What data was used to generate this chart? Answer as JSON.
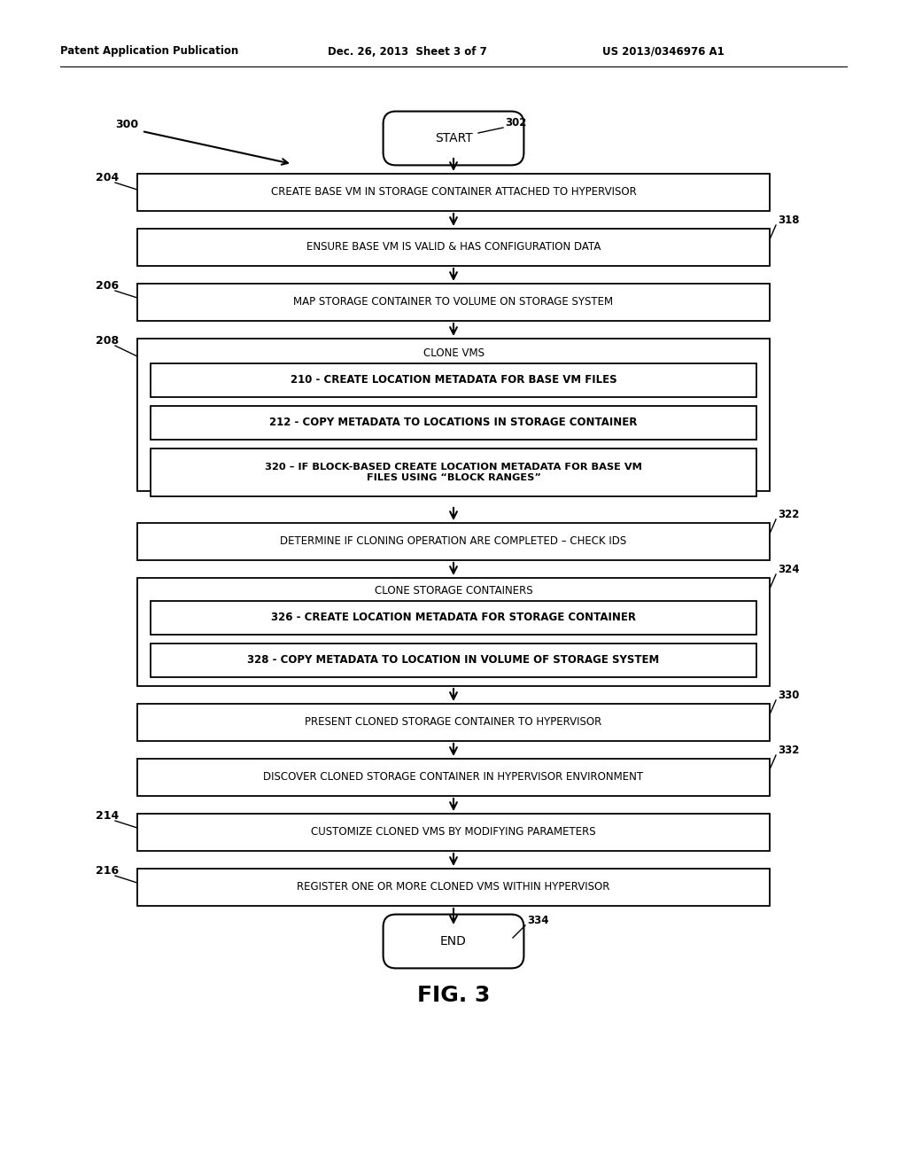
{
  "bg_color": "#ffffff",
  "text_color": "#000000",
  "header_left": "Patent Application Publication",
  "header_mid": "Dec. 26, 2013  Sheet 3 of 7",
  "header_right": "US 2013/0346976 A1",
  "fig_label": "FIG. 3",
  "start_label": "START",
  "end_label": "END",
  "ref_300": "300",
  "ref_302": "302",
  "ref_204": "204",
  "ref_318": "318",
  "ref_206": "206",
  "ref_208": "208",
  "ref_322": "322",
  "ref_324": "324",
  "ref_330": "330",
  "ref_332": "332",
  "ref_214": "214",
  "ref_216": "216",
  "ref_334": "334",
  "box1_text": "CREATE BASE VM IN STORAGE CONTAINER ATTACHED TO HYPERVISOR",
  "box2_text": "ENSURE BASE VM IS VALID & HAS CONFIGURATION DATA",
  "box3_text": "MAP STORAGE CONTAINER TO VOLUME ON STORAGE SYSTEM",
  "box4_title": "CLONE VMS",
  "box4_sub1": "210 - CREATE LOCATION METADATA FOR BASE VM FILES",
  "box4_sub2": "212 - COPY METADATA TO LOCATIONS IN STORAGE CONTAINER",
  "box4_sub3": "320 – IF BLOCK-BASED CREATE LOCATION METADATA FOR BASE VM\nFILES USING “BLOCK RANGES”",
  "box5_text": "DETERMINE IF CLONING OPERATION ARE COMPLETED – CHECK IDS",
  "box6_title": "CLONE STORAGE CONTAINERS",
  "box6_sub1": "326 - CREATE LOCATION METADATA FOR STORAGE CONTAINER",
  "box6_sub2": "328 - COPY METADATA TO LOCATION IN VOLUME OF STORAGE SYSTEM",
  "box7_text": "PRESENT CLONED STORAGE CONTAINER TO HYPERVISOR",
  "box8_text": "DISCOVER CLONED STORAGE CONTAINER IN HYPERVISOR ENVIRONMENT",
  "box9_text": "CUSTOMIZE CLONED VMS BY MODIFYING PARAMETERS",
  "box10_text": "REGISTER ONE OR MORE CLONED VMS WITHIN HYPERVISOR"
}
